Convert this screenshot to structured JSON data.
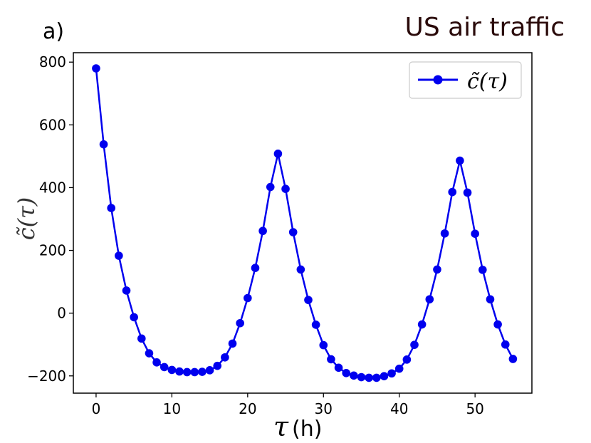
{
  "panel_label": "a)",
  "chart_data": {
    "type": "line",
    "title": "US air traffic",
    "xlabel": {
      "symbol": "τ",
      "unit": "(h)"
    },
    "ylabel": "c̃(τ)",
    "xlim": [
      -3,
      57.5
    ],
    "ylim": [
      -255,
      830
    ],
    "xticks": [
      0,
      10,
      20,
      30,
      40,
      50
    ],
    "yticks": [
      -200,
      0,
      200,
      400,
      600,
      800
    ],
    "ytick_labels": [
      "−200",
      "0",
      "200",
      "400",
      "600",
      "800"
    ],
    "legend_position": "top-right",
    "series": [
      {
        "name": "c̃(τ)",
        "color": "#0000ee",
        "marker": "circle",
        "x": [
          0,
          1,
          2,
          3,
          4,
          5,
          6,
          7,
          8,
          9,
          10,
          11,
          12,
          13,
          14,
          15,
          16,
          17,
          18,
          19,
          20,
          21,
          22,
          23,
          24,
          25,
          26,
          27,
          28,
          29,
          30,
          31,
          32,
          33,
          34,
          35,
          36,
          37,
          38,
          39,
          40,
          41,
          42,
          43,
          44,
          45,
          46,
          47,
          48,
          49,
          50,
          51,
          52,
          53,
          54,
          55
        ],
        "y": [
          780,
          538,
          335,
          183,
          72,
          -13,
          -81,
          -128,
          -157,
          -172,
          -181,
          -186,
          -188,
          -188,
          -187,
          -182,
          -168,
          -141,
          -97,
          -32,
          48,
          144,
          262,
          402,
          508,
          396,
          258,
          139,
          42,
          -37,
          -102,
          -147,
          -174,
          -191,
          -199,
          -204,
          -206,
          -206,
          -201,
          -192,
          -177,
          -148,
          -101,
          -36,
          44,
          139,
          254,
          386,
          486,
          384,
          253,
          138,
          44,
          -36,
          -100,
          -146
        ]
      }
    ]
  }
}
